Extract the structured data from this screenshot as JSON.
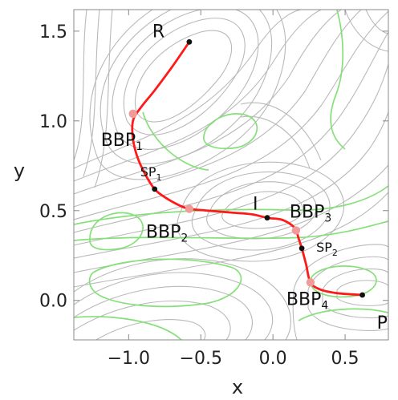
{
  "chart_data": {
    "type": "contour",
    "xlabel": "x",
    "ylabel": "y",
    "xlim": [
      -1.38,
      0.8
    ],
    "ylim": [
      -0.22,
      1.62
    ],
    "xticks": [
      {
        "value": -1.0,
        "label": "−1.0"
      },
      {
        "value": -0.5,
        "label": "−0.5"
      },
      {
        "value": 0.0,
        "label": "0.0"
      },
      {
        "value": 0.5,
        "label": "0.5"
      }
    ],
    "yticks": [
      {
        "value": 0.0,
        "label": "0.0"
      },
      {
        "value": 0.5,
        "label": "0.5"
      },
      {
        "value": 1.0,
        "label": "1.0"
      },
      {
        "value": 1.5,
        "label": "1.5"
      }
    ],
    "reaction_path": [
      {
        "x": -0.58,
        "y": 1.44
      },
      {
        "x": -0.7,
        "y": 1.3
      },
      {
        "x": -0.82,
        "y": 1.17
      },
      {
        "x": -0.92,
        "y": 1.07
      },
      {
        "x": -0.97,
        "y": 1.0
      },
      {
        "x": -0.97,
        "y": 0.9
      },
      {
        "x": -0.94,
        "y": 0.8
      },
      {
        "x": -0.89,
        "y": 0.71
      },
      {
        "x": -0.82,
        "y": 0.62
      },
      {
        "x": -0.74,
        "y": 0.57
      },
      {
        "x": -0.65,
        "y": 0.53
      },
      {
        "x": -0.58,
        "y": 0.51
      },
      {
        "x": -0.45,
        "y": 0.5
      },
      {
        "x": -0.3,
        "y": 0.49
      },
      {
        "x": -0.15,
        "y": 0.48
      },
      {
        "x": -0.04,
        "y": 0.46
      },
      {
        "x": 0.06,
        "y": 0.45
      },
      {
        "x": 0.13,
        "y": 0.42
      },
      {
        "x": 0.16,
        "y": 0.39
      },
      {
        "x": 0.18,
        "y": 0.34
      },
      {
        "x": 0.2,
        "y": 0.29
      },
      {
        "x": 0.23,
        "y": 0.2
      },
      {
        "x": 0.26,
        "y": 0.1
      },
      {
        "x": 0.33,
        "y": 0.06
      },
      {
        "x": 0.45,
        "y": 0.04
      },
      {
        "x": 0.62,
        "y": 0.03
      }
    ],
    "points": [
      {
        "id": "R",
        "label": "R",
        "sub": "",
        "x": -0.58,
        "y": 1.44,
        "kind": "minimum",
        "anchor": "upper-left"
      },
      {
        "id": "BBP1",
        "label": "BBP",
        "sub": "1",
        "x": -0.97,
        "y": 1.04,
        "kind": "bbp",
        "anchor": "below"
      },
      {
        "id": "SP1",
        "label": "SP",
        "sub": "1",
        "x": -0.82,
        "y": 0.62,
        "kind": "saddle",
        "anchor": "upper-left"
      },
      {
        "id": "BBP2",
        "label": "BBP",
        "sub": "2",
        "x": -0.58,
        "y": 0.51,
        "kind": "bbp",
        "anchor": "below"
      },
      {
        "id": "I",
        "label": "I",
        "sub": "",
        "x": -0.04,
        "y": 0.46,
        "kind": "minimum",
        "anchor": "upper-left"
      },
      {
        "id": "BBP3",
        "label": "BBP",
        "sub": "3",
        "x": 0.16,
        "y": 0.39,
        "kind": "bbp",
        "anchor": "above"
      },
      {
        "id": "SP2",
        "label": "SP",
        "sub": "2",
        "x": 0.2,
        "y": 0.29,
        "kind": "saddle",
        "anchor": "right"
      },
      {
        "id": "BBP4",
        "label": "BBP",
        "sub": "4",
        "x": 0.26,
        "y": 0.1,
        "kind": "bbp",
        "anchor": "below"
      },
      {
        "id": "P",
        "label": "P",
        "sub": "",
        "x": 0.62,
        "y": 0.03,
        "kind": "minimum",
        "anchor": "lower-right"
      }
    ],
    "colors": {
      "contour": "#b9b9b9",
      "green_curve": "#86e07a",
      "path": "#ff1a1a",
      "bbp_marker": "#f09a9a",
      "stationary_marker": "#111111"
    }
  }
}
